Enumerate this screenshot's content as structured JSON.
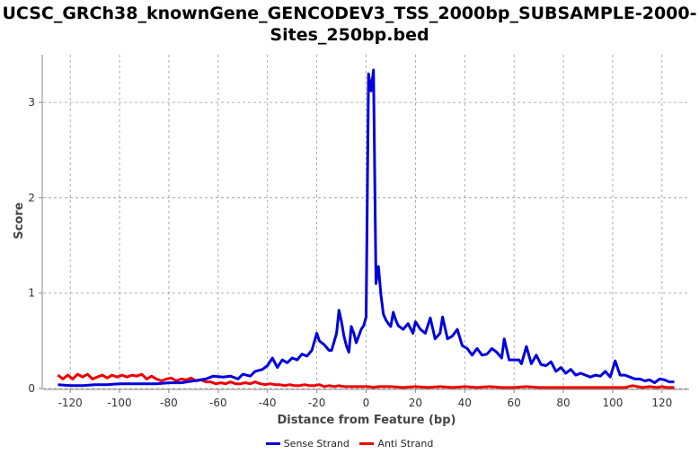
{
  "chart_data": {
    "type": "line",
    "title_lines": [
      "UCSC_GRCh38_knownGene_GENCODEV3_TSS_2000bp_SUBSAMPLE-2000-",
      "Sites_250bp.bed"
    ],
    "xlabel": "Distance from Feature (bp)",
    "ylabel": "Score",
    "xlim": [
      -131,
      131
    ],
    "ylim": [
      0,
      3.5
    ],
    "x_ticks": [
      -120,
      -100,
      -80,
      -60,
      -40,
      -20,
      0,
      20,
      40,
      60,
      80,
      100,
      120
    ],
    "y_ticks": [
      0,
      1,
      2,
      3
    ],
    "grid": true,
    "legend_position": "bottom-center",
    "series": [
      {
        "name": "Sense Strand",
        "color": "#0000dd",
        "points": [
          [
            -125,
            0.04
          ],
          [
            -120,
            0.03
          ],
          [
            -115,
            0.03
          ],
          [
            -110,
            0.04
          ],
          [
            -105,
            0.04
          ],
          [
            -100,
            0.05
          ],
          [
            -95,
            0.05
          ],
          [
            -90,
            0.05
          ],
          [
            -85,
            0.05
          ],
          [
            -80,
            0.06
          ],
          [
            -75,
            0.06
          ],
          [
            -70,
            0.08
          ],
          [
            -65,
            0.1
          ],
          [
            -62,
            0.13
          ],
          [
            -58,
            0.12
          ],
          [
            -55,
            0.13
          ],
          [
            -52,
            0.1
          ],
          [
            -50,
            0.15
          ],
          [
            -47,
            0.13
          ],
          [
            -45,
            0.18
          ],
          [
            -42,
            0.2
          ],
          [
            -40,
            0.24
          ],
          [
            -38,
            0.32
          ],
          [
            -36,
            0.22
          ],
          [
            -34,
            0.3
          ],
          [
            -32,
            0.27
          ],
          [
            -30,
            0.32
          ],
          [
            -28,
            0.3
          ],
          [
            -26,
            0.36
          ],
          [
            -24,
            0.34
          ],
          [
            -22,
            0.4
          ],
          [
            -20,
            0.58
          ],
          [
            -19,
            0.5
          ],
          [
            -17,
            0.46
          ],
          [
            -15,
            0.4
          ],
          [
            -14,
            0.4
          ],
          [
            -12,
            0.58
          ],
          [
            -11,
            0.82
          ],
          [
            -10,
            0.7
          ],
          [
            -9,
            0.55
          ],
          [
            -8,
            0.45
          ],
          [
            -7,
            0.38
          ],
          [
            -6,
            0.65
          ],
          [
            -5,
            0.58
          ],
          [
            -4,
            0.48
          ],
          [
            -3,
            0.55
          ],
          [
            -2,
            0.62
          ],
          [
            -1,
            0.66
          ],
          [
            0,
            0.75
          ],
          [
            1,
            3.3
          ],
          [
            2,
            3.12
          ],
          [
            3,
            3.34
          ],
          [
            4,
            1.1
          ],
          [
            5,
            1.28
          ],
          [
            6,
            0.98
          ],
          [
            7,
            0.78
          ],
          [
            8,
            0.72
          ],
          [
            9,
            0.68
          ],
          [
            10,
            0.65
          ],
          [
            11,
            0.8
          ],
          [
            12,
            0.72
          ],
          [
            13,
            0.66
          ],
          [
            15,
            0.62
          ],
          [
            17,
            0.68
          ],
          [
            19,
            0.58
          ],
          [
            20,
            0.7
          ],
          [
            22,
            0.62
          ],
          [
            24,
            0.58
          ],
          [
            26,
            0.74
          ],
          [
            28,
            0.52
          ],
          [
            30,
            0.58
          ],
          [
            31,
            0.75
          ],
          [
            33,
            0.52
          ],
          [
            35,
            0.55
          ],
          [
            37,
            0.62
          ],
          [
            39,
            0.45
          ],
          [
            41,
            0.42
          ],
          [
            43,
            0.35
          ],
          [
            45,
            0.42
          ],
          [
            47,
            0.35
          ],
          [
            49,
            0.36
          ],
          [
            51,
            0.42
          ],
          [
            53,
            0.38
          ],
          [
            55,
            0.32
          ],
          [
            56,
            0.52
          ],
          [
            58,
            0.3
          ],
          [
            60,
            0.3
          ],
          [
            62,
            0.3
          ],
          [
            63,
            0.26
          ],
          [
            65,
            0.44
          ],
          [
            67,
            0.26
          ],
          [
            69,
            0.35
          ],
          [
            71,
            0.25
          ],
          [
            73,
            0.24
          ],
          [
            75,
            0.28
          ],
          [
            77,
            0.18
          ],
          [
            79,
            0.22
          ],
          [
            81,
            0.16
          ],
          [
            83,
            0.2
          ],
          [
            85,
            0.14
          ],
          [
            87,
            0.16
          ],
          [
            89,
            0.14
          ],
          [
            91,
            0.12
          ],
          [
            93,
            0.14
          ],
          [
            95,
            0.13
          ],
          [
            97,
            0.18
          ],
          [
            99,
            0.12
          ],
          [
            101,
            0.29
          ],
          [
            103,
            0.14
          ],
          [
            105,
            0.14
          ],
          [
            107,
            0.12
          ],
          [
            109,
            0.1
          ],
          [
            111,
            0.1
          ],
          [
            113,
            0.08
          ],
          [
            115,
            0.09
          ],
          [
            117,
            0.06
          ],
          [
            119,
            0.1
          ],
          [
            121,
            0.09
          ],
          [
            123,
            0.07
          ],
          [
            125,
            0.07
          ]
        ]
      },
      {
        "name": "Anti Strand",
        "color": "#ee0000",
        "points": [
          [
            -125,
            0.14
          ],
          [
            -123,
            0.1
          ],
          [
            -121,
            0.14
          ],
          [
            -119,
            0.1
          ],
          [
            -117,
            0.15
          ],
          [
            -115,
            0.12
          ],
          [
            -113,
            0.15
          ],
          [
            -111,
            0.1
          ],
          [
            -109,
            0.12
          ],
          [
            -107,
            0.14
          ],
          [
            -105,
            0.11
          ],
          [
            -103,
            0.14
          ],
          [
            -101,
            0.12
          ],
          [
            -99,
            0.14
          ],
          [
            -97,
            0.12
          ],
          [
            -95,
            0.14
          ],
          [
            -93,
            0.13
          ],
          [
            -91,
            0.15
          ],
          [
            -89,
            0.1
          ],
          [
            -87,
            0.13
          ],
          [
            -85,
            0.1
          ],
          [
            -83,
            0.08
          ],
          [
            -81,
            0.1
          ],
          [
            -79,
            0.11
          ],
          [
            -77,
            0.08
          ],
          [
            -75,
            0.1
          ],
          [
            -73,
            0.09
          ],
          [
            -71,
            0.11
          ],
          [
            -69,
            0.08
          ],
          [
            -67,
            0.09
          ],
          [
            -65,
            0.07
          ],
          [
            -63,
            0.07
          ],
          [
            -61,
            0.05
          ],
          [
            -59,
            0.06
          ],
          [
            -57,
            0.05
          ],
          [
            -55,
            0.07
          ],
          [
            -53,
            0.05
          ],
          [
            -51,
            0.05
          ],
          [
            -49,
            0.06
          ],
          [
            -47,
            0.05
          ],
          [
            -45,
            0.07
          ],
          [
            -43,
            0.05
          ],
          [
            -41,
            0.04
          ],
          [
            -39,
            0.05
          ],
          [
            -37,
            0.04
          ],
          [
            -35,
            0.04
          ],
          [
            -33,
            0.03
          ],
          [
            -31,
            0.04
          ],
          [
            -29,
            0.03
          ],
          [
            -27,
            0.03
          ],
          [
            -25,
            0.04
          ],
          [
            -23,
            0.03
          ],
          [
            -21,
            0.03
          ],
          [
            -19,
            0.04
          ],
          [
            -17,
            0.02
          ],
          [
            -15,
            0.03
          ],
          [
            -13,
            0.02
          ],
          [
            -11,
            0.03
          ],
          [
            -9,
            0.02
          ],
          [
            -7,
            0.02
          ],
          [
            -5,
            0.02
          ],
          [
            -3,
            0.02
          ],
          [
            -1,
            0.02
          ],
          [
            1,
            0.02
          ],
          [
            3,
            0.01
          ],
          [
            5,
            0.02
          ],
          [
            10,
            0.02
          ],
          [
            15,
            0.01
          ],
          [
            20,
            0.02
          ],
          [
            25,
            0.01
          ],
          [
            30,
            0.02
          ],
          [
            35,
            0.01
          ],
          [
            40,
            0.02
          ],
          [
            45,
            0.01
          ],
          [
            50,
            0.02
          ],
          [
            55,
            0.01
          ],
          [
            60,
            0.01
          ],
          [
            65,
            0.02
          ],
          [
            70,
            0.01
          ],
          [
            75,
            0.01
          ],
          [
            80,
            0.01
          ],
          [
            85,
            0.01
          ],
          [
            90,
            0.01
          ],
          [
            95,
            0.01
          ],
          [
            100,
            0.01
          ],
          [
            105,
            0.01
          ],
          [
            108,
            0.03
          ],
          [
            110,
            0.02
          ],
          [
            112,
            0.01
          ],
          [
            115,
            0.02
          ],
          [
            118,
            0.01
          ],
          [
            120,
            0.02
          ],
          [
            122,
            0.01
          ],
          [
            125,
            0.01
          ]
        ]
      }
    ]
  }
}
